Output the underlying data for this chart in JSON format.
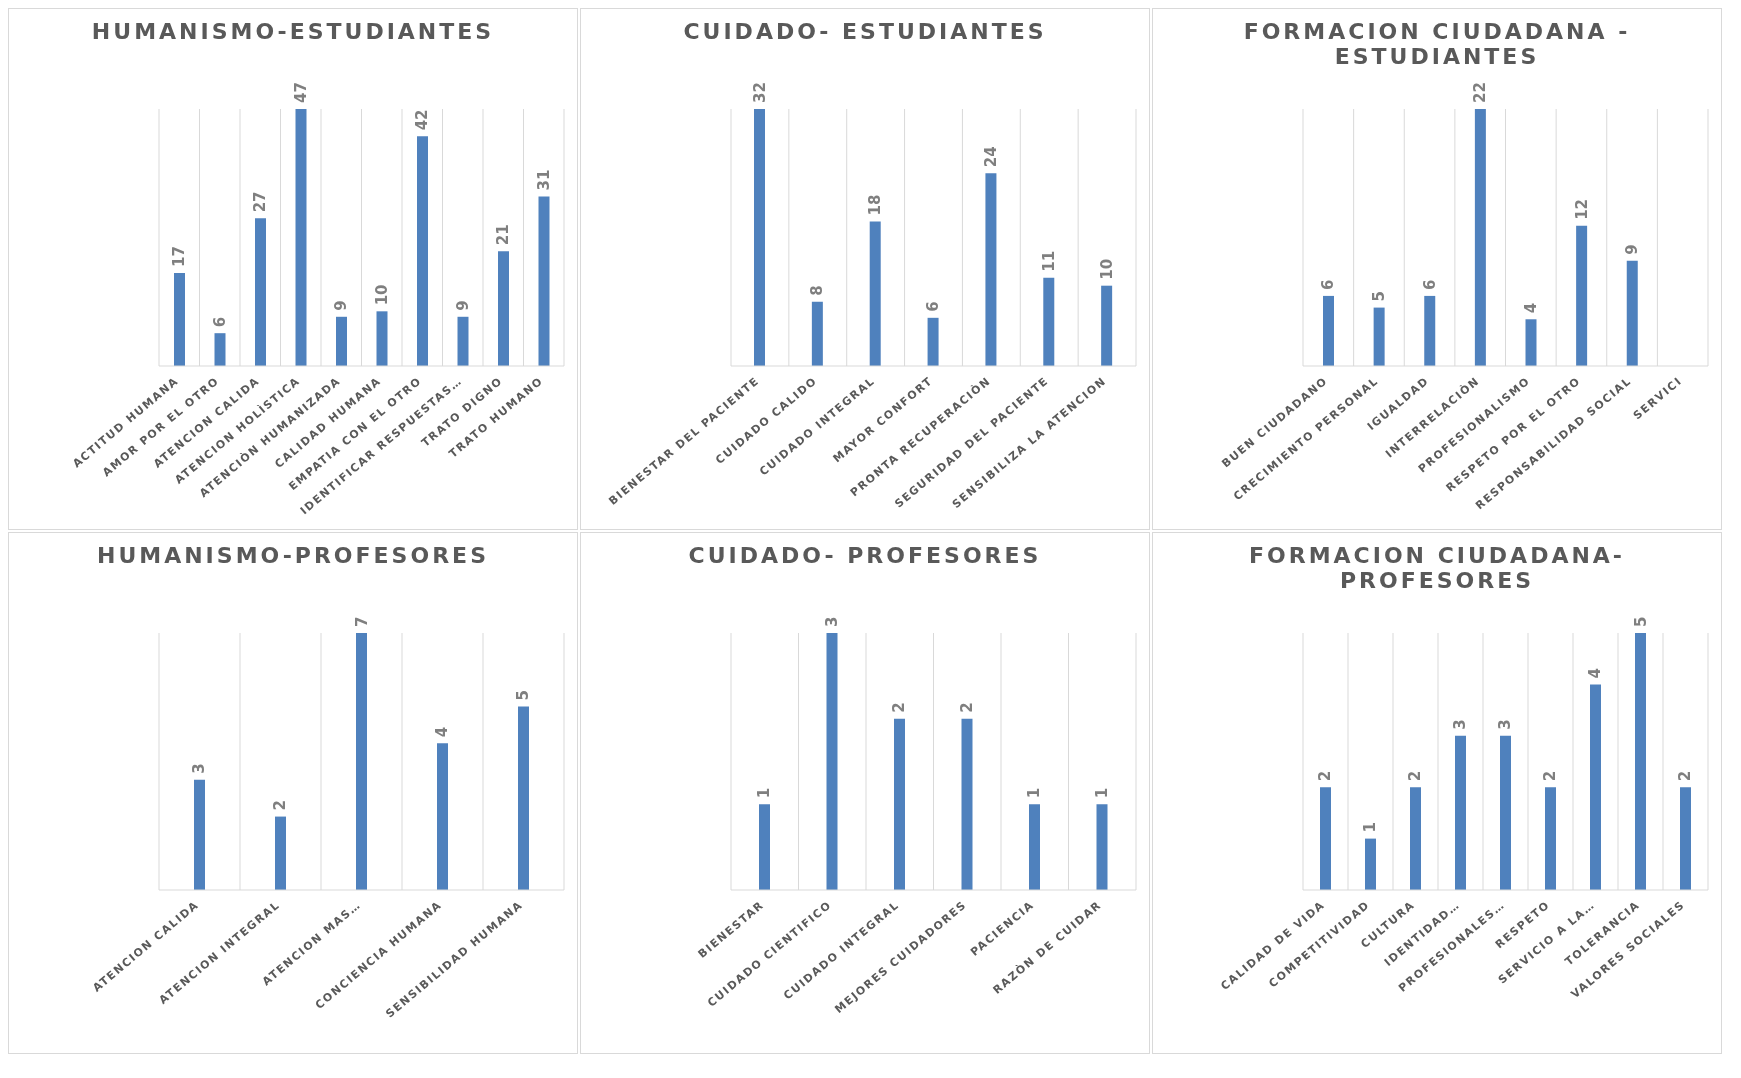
{
  "chart_data": [
    {
      "type": "bar",
      "title": "HUMANISMO-ESTUDIANTES",
      "categories": [
        "ACTITUD HUMANA",
        "AMOR POR EL OTRO",
        "ATENCION CALIDA",
        "ATENCION HOLÌSTICA",
        "ATENCIÒN HUMANIZADA",
        "CALIDAD HUMANA",
        "EMPATIA CON EL OTRO",
        "IDENTIFICAR RESPUESTAS…",
        "TRATO DIGNO",
        "TRATO HUMANO"
      ],
      "values": [
        17,
        6,
        27,
        47,
        9,
        10,
        42,
        9,
        21,
        31
      ],
      "color": "#4f81bd",
      "data_labels": true,
      "grid": "x",
      "legend": false
    },
    {
      "type": "bar",
      "title": "CUIDADO- ESTUDIANTES",
      "categories": [
        "BIENESTAR DEL PACIENTE",
        "CUIDADO CALIDO",
        "CUIDADO INTEGRAL",
        "MAYOR CONFORT",
        "PRONTA RECUPERACIÒN",
        "SEGURIDAD DEL PACIENTE",
        "SENSIBILIZA LA ATENCION"
      ],
      "values": [
        32,
        8,
        18,
        6,
        24,
        11,
        10
      ],
      "color": "#4f81bd",
      "data_labels": true,
      "grid": "x",
      "legend": false
    },
    {
      "type": "bar",
      "title": "FORMACION CIUDADANA - ESTUDIANTES",
      "categories": [
        "BUEN CIUDADANO",
        "CRECIMIENTO PERSONAL",
        "IGUALDAD",
        "INTERRELACIÒN",
        "PROFESIONALISMO",
        "RESPETO POR EL OTRO",
        "RESPONSABILIDAD SOCIAL",
        "SERVICI"
      ],
      "values": [
        6,
        5,
        6,
        22,
        4,
        12,
        9,
        null
      ],
      "color": "#4f81bd",
      "data_labels": true,
      "grid": "x",
      "legend": false
    },
    {
      "type": "bar",
      "title": "HUMANISMO-PROFESORES",
      "categories": [
        "ATENCION CALIDA",
        "ATENCION INTEGRAL",
        "ATENCION MAS…",
        "CONCIENCIA HUMANA",
        "SENSIBILIDAD HUMANA"
      ],
      "values": [
        3,
        2,
        7,
        4,
        5
      ],
      "color": "#4f81bd",
      "data_labels": true,
      "grid": "x",
      "legend": false
    },
    {
      "type": "bar",
      "title": "CUIDADO- PROFESORES",
      "categories": [
        "BIENESTAR",
        "CUIDADO CIENTIFICO",
        "CUIDADO INTEGRAL",
        "MEJORES CUIDADORES",
        "PACIENCIA",
        "RAZÒN DE CUIDAR"
      ],
      "values": [
        1,
        3,
        2,
        2,
        1,
        1
      ],
      "color": "#4f81bd",
      "data_labels": true,
      "grid": "x",
      "legend": false
    },
    {
      "type": "bar",
      "title": "FORMACION CIUDADANA-PROFESORES",
      "categories": [
        "CALIDAD DE VIDA",
        "COMPETITIVIDAD",
        "CULTURA",
        "IDENTIDAD…",
        "PROFESIONALES…",
        "RESPETO",
        "SERVICIO A LA…",
        "TOLERANCIA",
        "VALORES SOCIALES"
      ],
      "values": [
        2,
        1,
        2,
        3,
        3,
        2,
        4,
        5,
        2
      ],
      "color": "#4f81bd",
      "data_labels": true,
      "grid": "x",
      "legend": false
    }
  ]
}
